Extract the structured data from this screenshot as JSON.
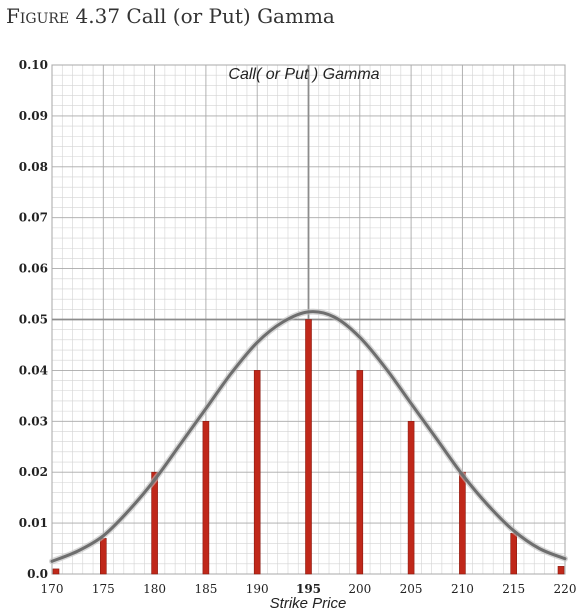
{
  "figure": {
    "label": "Figure 4.37",
    "title": "Call (or Put) Gamma"
  },
  "chart_data": {
    "type": "bar",
    "title": "Call( or Put ) Gamma",
    "xlabel": "Strike Price",
    "ylabel": "",
    "categories": [
      "170",
      "175",
      "180",
      "185",
      "190",
      "195",
      "200",
      "205",
      "210",
      "215",
      "220"
    ],
    "x": [
      170,
      175,
      180,
      185,
      190,
      195,
      200,
      205,
      210,
      215,
      220
    ],
    "xlim": [
      170,
      220
    ],
    "ylim": [
      0,
      0.1
    ],
    "yticks": [
      "0.0",
      "0.01",
      "0.02",
      "0.03",
      "0.04",
      "0.05",
      "0.06",
      "0.07",
      "0.08",
      "0.09",
      "0.10"
    ],
    "series": [
      {
        "values": [
          0.001,
          0.007,
          0.02,
          0.03,
          0.04,
          0.05,
          0.04,
          0.03,
          0.02,
          0.008,
          0.0015
        ]
      }
    ],
    "curve": {
      "x": [
        170,
        172.5,
        175,
        177.5,
        180,
        182.5,
        185,
        187.5,
        190,
        192.5,
        195,
        197.5,
        200,
        202.5,
        205,
        207.5,
        210,
        212.5,
        215,
        217.5,
        220
      ],
      "y": [
        0.0025,
        0.0045,
        0.0075,
        0.0125,
        0.0185,
        0.0255,
        0.0325,
        0.0395,
        0.0455,
        0.0495,
        0.0515,
        0.0505,
        0.0465,
        0.0405,
        0.0335,
        0.0265,
        0.0195,
        0.0135,
        0.0085,
        0.005,
        0.003
      ]
    },
    "reference_lines": {
      "x": 195,
      "y": 0.05
    },
    "bar_color": "#c0281a",
    "curve_color": "#6e6e6e",
    "grid": true,
    "legend": "none"
  }
}
